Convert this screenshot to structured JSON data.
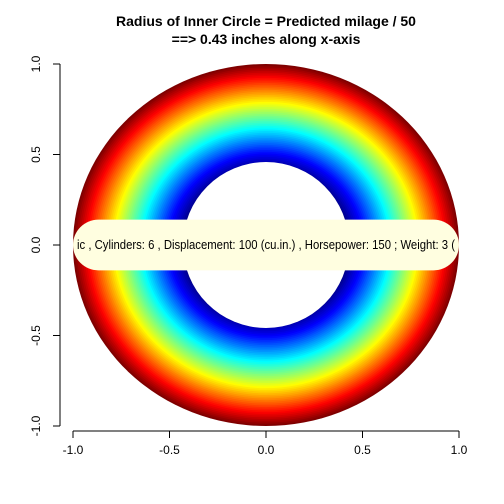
{
  "chart_data": {
    "type": "area",
    "title_line1": "Radius of Inner Circle = Predicted milage / 50",
    "title_line2": "==>  0.43 inches along x-axis",
    "xlabel": "",
    "ylabel": "",
    "xlim": [
      -1.0,
      1.0
    ],
    "ylim": [
      -1.0,
      1.0
    ],
    "x_ticks": [
      -1.0,
      -0.5,
      0.0,
      0.5,
      1.0
    ],
    "x_tick_labels": [
      "-1.0",
      "-0.5",
      "0.0",
      "0.5",
      "1.0"
    ],
    "y_ticks": [
      -1.0,
      -0.5,
      0.0,
      0.5,
      1.0
    ],
    "y_tick_labels": [
      "-1.0",
      "-0.5",
      "0.0",
      "0.5",
      "1.0"
    ],
    "outer_radius": 1.0,
    "inner_radius": 0.43,
    "ring_colors": [
      "#7f0000",
      "#ff0000",
      "#ff7f00",
      "#ffff00",
      "#7fff7f",
      "#00ffff",
      "#007fff",
      "#0000ff",
      "#00008f"
    ],
    "banner_text": "ic , Cylinders:  6 , Displacement:  100 (cu.in.) , Horsepower:  150 ; Weight:  3 (",
    "banner_color": "#fffee0",
    "grid": false
  }
}
